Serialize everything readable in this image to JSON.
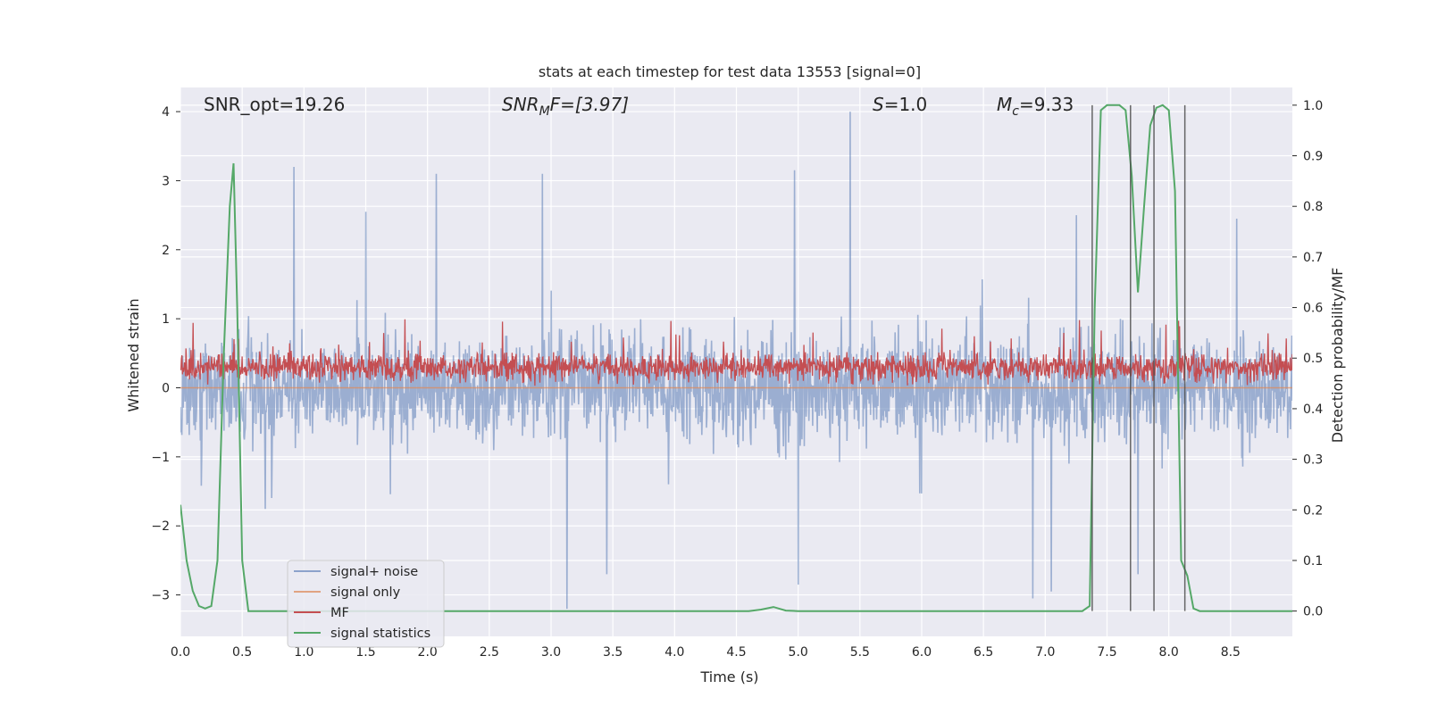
{
  "chart_data": {
    "type": "line",
    "title": "stats at each timestep for test data 13553 [signal=0]",
    "xlabel": "Time (s)",
    "ylabel": "Whitened strain",
    "y2label": "Detection probability/MF",
    "xlim": [
      0,
      9.0
    ],
    "ylim": [
      -3.6,
      4.35
    ],
    "y2lim": [
      -0.05,
      1.035
    ],
    "x_ticks": [
      0.0,
      0.5,
      1.0,
      1.5,
      2.0,
      2.5,
      3.0,
      3.5,
      4.0,
      4.5,
      5.0,
      5.5,
      6.0,
      6.5,
      7.0,
      7.5,
      8.0,
      8.5
    ],
    "x_tick_labels": [
      "0.0",
      "0.5",
      "1.0",
      "1.5",
      "2.0",
      "2.5",
      "3.0",
      "3.5",
      "4.0",
      "4.5",
      "5.0",
      "5.5",
      "6.0",
      "6.5",
      "7.0",
      "7.5",
      "8.0",
      "8.5"
    ],
    "y_ticks": [
      -3,
      -2,
      -1,
      0,
      1,
      2,
      3,
      4
    ],
    "y_tick_labels": [
      "−3",
      "−2",
      "−1",
      "0",
      "1",
      "2",
      "3",
      "4"
    ],
    "y2_ticks": [
      0.0,
      0.1,
      0.2,
      0.3,
      0.4,
      0.5,
      0.6,
      0.7,
      0.8,
      0.9,
      1.0
    ],
    "y2_tick_labels": [
      "0.0",
      "0.1",
      "0.2",
      "0.3",
      "0.4",
      "0.5",
      "0.6",
      "0.7",
      "0.8",
      "0.9",
      "1.0"
    ],
    "grid": true,
    "legend_position": "lower-left",
    "annotations": [
      {
        "id": "snr-opt",
        "text": "SNR_opt=19.26"
      },
      {
        "id": "snr-mf",
        "base": "SNR",
        "sub": "M",
        "tail": "F=[3.97]"
      },
      {
        "id": "s-value",
        "base": "S",
        "tail": "=1.0"
      },
      {
        "id": "mc-value",
        "base": "M",
        "sub": "c",
        "tail": "=9.33"
      }
    ],
    "series": [
      {
        "name": "signal+ noise",
        "color": "#4c72b0",
        "axis": "left",
        "style": "noise",
        "typical_range": [
          -1.1,
          1.1
        ],
        "peaks": [
          {
            "x": 0.92,
            "y": 3.2
          },
          {
            "x": 1.5,
            "y": 2.55
          },
          {
            "x": 2.07,
            "y": 3.1
          },
          {
            "x": 2.93,
            "y": 3.1
          },
          {
            "x": 4.97,
            "y": 3.15
          },
          {
            "x": 5.42,
            "y": 4.0
          },
          {
            "x": 7.25,
            "y": 2.5
          },
          {
            "x": 8.55,
            "y": 2.45
          }
        ],
        "troughs": [
          {
            "x": 3.13,
            "y": -3.2
          },
          {
            "x": 3.45,
            "y": -2.7
          },
          {
            "x": 5.0,
            "y": -2.85
          },
          {
            "x": 6.9,
            "y": -3.05
          },
          {
            "x": 7.05,
            "y": -2.95
          },
          {
            "x": 7.75,
            "y": -2.7
          }
        ]
      },
      {
        "name": "signal only",
        "color": "#dd8452",
        "axis": "left",
        "x": [
          0.0,
          9.0
        ],
        "y": [
          0.0,
          0.0
        ]
      },
      {
        "name": "MF",
        "color": "#c44e52",
        "axis": "left",
        "style": "noise",
        "center": 0.3,
        "typical_range": [
          0.05,
          0.75
        ],
        "max": 1.0
      },
      {
        "name": "signal statistics",
        "color": "#55a868",
        "axis": "right",
        "x": [
          0.0,
          0.05,
          0.1,
          0.15,
          0.2,
          0.25,
          0.3,
          0.35,
          0.4,
          0.43,
          0.46,
          0.5,
          0.55,
          0.6,
          4.6,
          4.7,
          4.8,
          4.9,
          5.0,
          7.3,
          7.36,
          7.4,
          7.45,
          7.5,
          7.6,
          7.65,
          7.7,
          7.75,
          7.8,
          7.85,
          7.9,
          7.95,
          8.0,
          8.05,
          8.1,
          8.15,
          8.2,
          8.25,
          8.3,
          8.35,
          8.4,
          9.0
        ],
        "y": [
          0.21,
          0.1,
          0.04,
          0.01,
          0.005,
          0.01,
          0.1,
          0.5,
          0.8,
          0.885,
          0.6,
          0.1,
          0.0,
          0.0,
          0.0,
          0.003,
          0.008,
          0.001,
          0.0,
          0.0,
          0.01,
          0.6,
          0.99,
          1.0,
          1.0,
          0.99,
          0.86,
          0.63,
          0.8,
          0.96,
          0.995,
          1.0,
          0.99,
          0.83,
          0.1,
          0.07,
          0.005,
          0.0,
          0.0,
          0.0,
          0.0,
          0.0
        ]
      }
    ],
    "vertical_lines": {
      "color": "#4d4d4d",
      "x": [
        7.38,
        7.69,
        7.88,
        8.13
      ],
      "y2_range": [
        0.0,
        1.0
      ]
    }
  }
}
